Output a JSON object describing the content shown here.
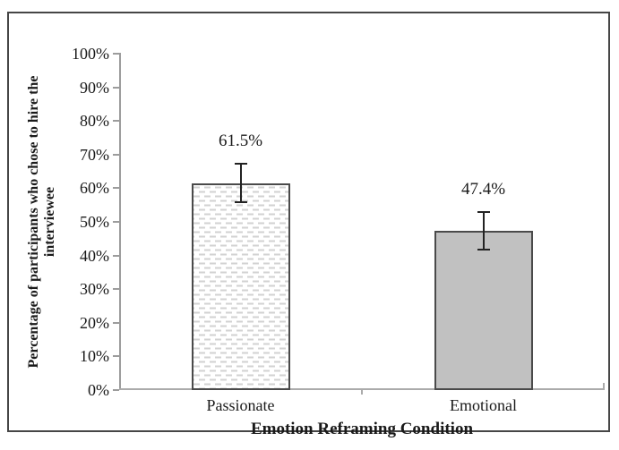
{
  "chart_data": {
    "type": "bar",
    "categories": [
      "Passionate",
      "Emotional"
    ],
    "values": [
      61.5,
      47.4
    ],
    "data_labels": [
      "61.5%",
      "47.4%"
    ],
    "error_margins": [
      6.0,
      5.9
    ],
    "xlabel": "Emotion Reframing Condition",
    "ylabel": "Percentage of participants who chose to hire the interviewee",
    "ylabel_lines": [
      "Percentage of participants who chose to hire the",
      "interviewee"
    ],
    "ylim": [
      0,
      100
    ],
    "ytick_values": [
      0,
      10,
      20,
      30,
      40,
      50,
      60,
      70,
      80,
      90,
      100
    ],
    "ytick_labels": [
      "0%",
      "10%",
      "20%",
      "30%",
      "40%",
      "50%",
      "60%",
      "70%",
      "80%",
      "90%",
      "100%"
    ],
    "grid": false,
    "legend": "none",
    "bar_styles": [
      "dotted-pattern-on-white",
      "solid-gray"
    ],
    "colors": {
      "bar_passionate_fill": "#ffffff",
      "bar_pattern_dash": "#d2d2d2",
      "bar_emotional_fill": "#c1c1c1",
      "bar_border": "#4a4a4a",
      "axis_line": "#9c9c9c",
      "error_bar": "#222222",
      "text": "#1a1a1a",
      "frame_border": "#464646"
    }
  }
}
